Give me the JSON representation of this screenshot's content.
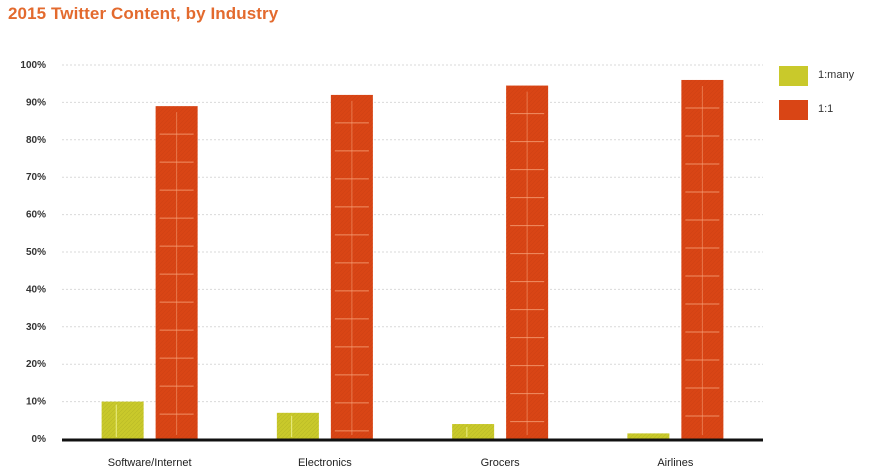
{
  "chart_data": {
    "type": "bar",
    "title": "2015 Twitter Content, by Industry",
    "categories": [
      "Software/Internet",
      "Electronics",
      "Grocers",
      "Airlines"
    ],
    "series": [
      {
        "name": "1:many",
        "values": [
          10,
          7,
          4,
          1.5
        ],
        "color": "#c9c92b"
      },
      {
        "name": "1:1",
        "values": [
          89,
          92,
          94.5,
          96
        ],
        "color": "#d94515"
      }
    ],
    "yticks": [
      "0%",
      "10%",
      "20%",
      "30%",
      "40%",
      "50%",
      "60%",
      "70%",
      "80%",
      "90%",
      "100%"
    ],
    "ylim": [
      0,
      100
    ],
    "grid": true,
    "legend": "right"
  }
}
